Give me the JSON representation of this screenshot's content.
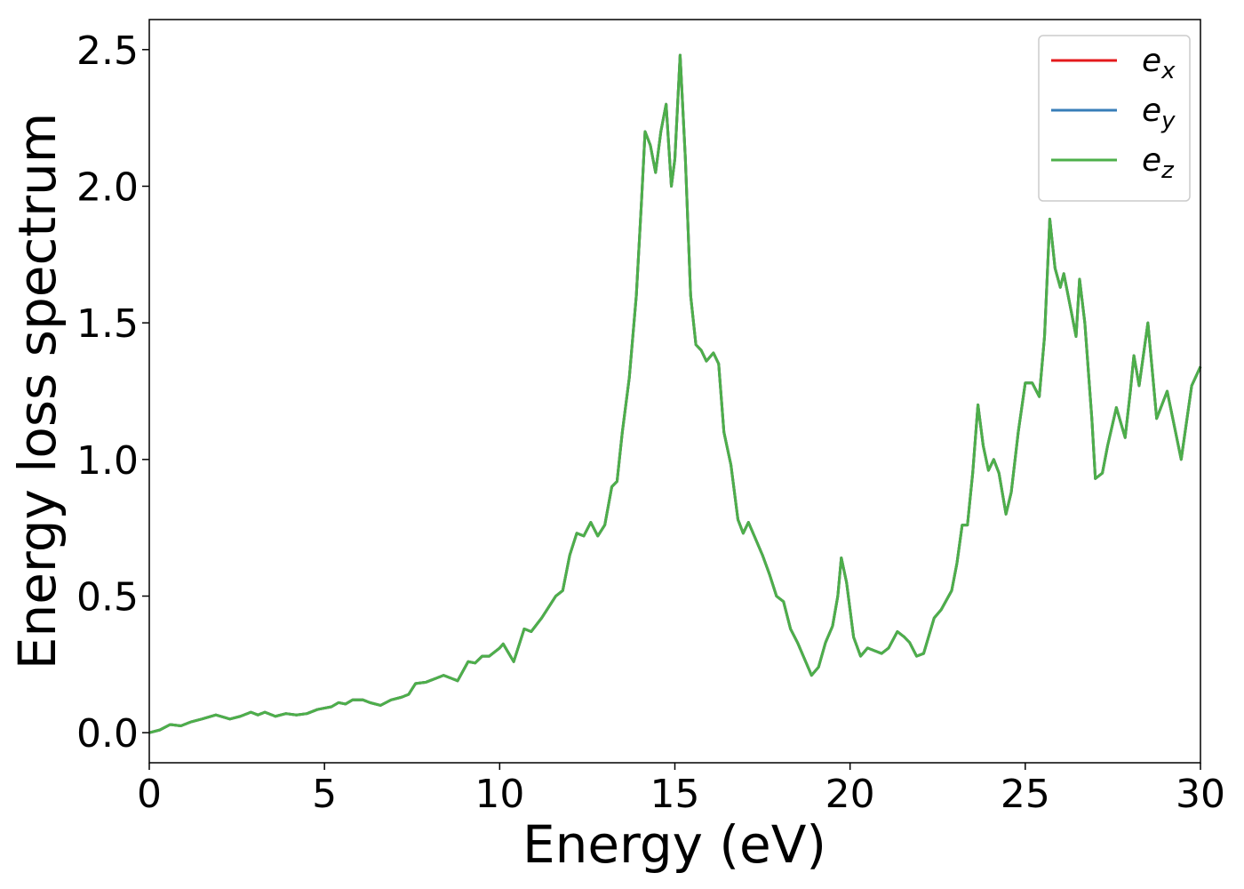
{
  "chart_data": {
    "type": "line",
    "xlabel": "Energy (eV)",
    "ylabel": "Energy loss spectrum",
    "x": [
      0,
      0.3,
      0.6,
      0.9,
      1.2,
      1.5,
      1.9,
      2.3,
      2.6,
      2.9,
      3.1,
      3.3,
      3.6,
      3.9,
      4.2,
      4.5,
      4.8,
      5.2,
      5.4,
      5.6,
      5.8,
      6.1,
      6.3,
      6.6,
      6.9,
      7.2,
      7.4,
      7.6,
      7.9,
      8.2,
      8.4,
      8.8,
      9.1,
      9.3,
      9.5,
      9.7,
      10.0,
      10.1,
      10.4,
      10.7,
      10.9,
      11.2,
      11.4,
      11.6,
      11.8,
      12.0,
      12.2,
      12.4,
      12.6,
      12.8,
      13.0,
      13.2,
      13.35,
      13.5,
      13.7,
      13.9,
      14.05,
      14.15,
      14.3,
      14.45,
      14.6,
      14.75,
      14.9,
      15.0,
      15.15,
      15.3,
      15.45,
      15.6,
      15.75,
      15.9,
      16.1,
      16.25,
      16.4,
      16.6,
      16.8,
      16.95,
      17.1,
      17.3,
      17.5,
      17.7,
      17.9,
      18.1,
      18.3,
      18.5,
      18.7,
      18.9,
      19.1,
      19.3,
      19.5,
      19.65,
      19.75,
      19.9,
      20.1,
      20.3,
      20.5,
      20.7,
      20.9,
      21.1,
      21.35,
      21.55,
      21.7,
      21.9,
      22.1,
      22.4,
      22.6,
      22.9,
      23.05,
      23.2,
      23.35,
      23.5,
      23.65,
      23.8,
      23.95,
      24.1,
      24.25,
      24.45,
      24.6,
      24.8,
      25.0,
      25.2,
      25.4,
      25.55,
      25.7,
      25.85,
      26.0,
      26.1,
      26.3,
      26.45,
      26.55,
      26.7,
      26.9,
      27.0,
      27.2,
      27.35,
      27.6,
      27.85,
      28.0,
      28.1,
      28.25,
      28.5,
      28.75,
      29.05,
      29.45,
      29.75,
      30.0
    ],
    "series": [
      {
        "name": "ex",
        "color": "#e41a1c",
        "values": [
          0.0,
          0.01,
          0.03,
          0.025,
          0.04,
          0.05,
          0.065,
          0.05,
          0.06,
          0.075,
          0.065,
          0.075,
          0.06,
          0.07,
          0.065,
          0.07,
          0.085,
          0.095,
          0.11,
          0.105,
          0.12,
          0.12,
          0.11,
          0.1,
          0.12,
          0.13,
          0.14,
          0.18,
          0.185,
          0.2,
          0.21,
          0.19,
          0.26,
          0.255,
          0.28,
          0.28,
          0.31,
          0.325,
          0.26,
          0.38,
          0.37,
          0.42,
          0.46,
          0.5,
          0.52,
          0.65,
          0.73,
          0.72,
          0.77,
          0.72,
          0.76,
          0.9,
          0.92,
          1.1,
          1.3,
          1.6,
          1.95,
          2.2,
          2.15,
          2.05,
          2.2,
          2.3,
          2.0,
          2.1,
          2.48,
          2.1,
          1.6,
          1.42,
          1.4,
          1.36,
          1.39,
          1.35,
          1.1,
          0.98,
          0.78,
          0.73,
          0.77,
          0.71,
          0.65,
          0.58,
          0.5,
          0.48,
          0.38,
          0.33,
          0.27,
          0.21,
          0.24,
          0.33,
          0.39,
          0.5,
          0.64,
          0.55,
          0.35,
          0.28,
          0.31,
          0.3,
          0.29,
          0.31,
          0.37,
          0.35,
          0.33,
          0.28,
          0.29,
          0.42,
          0.45,
          0.52,
          0.62,
          0.76,
          0.76,
          0.95,
          1.2,
          1.05,
          0.96,
          1.0,
          0.95,
          0.8,
          0.88,
          1.1,
          1.28,
          1.28,
          1.23,
          1.45,
          1.88,
          1.7,
          1.63,
          1.68,
          1.55,
          1.45,
          1.66,
          1.5,
          1.15,
          0.93,
          0.95,
          1.05,
          1.19,
          1.08,
          1.25,
          1.38,
          1.27,
          1.5,
          1.15,
          1.25,
          1.0,
          1.27,
          1.34
        ]
      },
      {
        "name": "ey",
        "color": "#377eb8",
        "values": [
          0.0,
          0.01,
          0.03,
          0.025,
          0.04,
          0.05,
          0.065,
          0.05,
          0.06,
          0.075,
          0.065,
          0.075,
          0.06,
          0.07,
          0.065,
          0.07,
          0.085,
          0.095,
          0.11,
          0.105,
          0.12,
          0.12,
          0.11,
          0.1,
          0.12,
          0.13,
          0.14,
          0.18,
          0.185,
          0.2,
          0.21,
          0.19,
          0.26,
          0.255,
          0.28,
          0.28,
          0.31,
          0.325,
          0.26,
          0.38,
          0.37,
          0.42,
          0.46,
          0.5,
          0.52,
          0.65,
          0.73,
          0.72,
          0.77,
          0.72,
          0.76,
          0.9,
          0.92,
          1.1,
          1.3,
          1.6,
          1.95,
          2.2,
          2.15,
          2.05,
          2.2,
          2.3,
          2.0,
          2.1,
          2.48,
          2.1,
          1.6,
          1.42,
          1.4,
          1.36,
          1.39,
          1.35,
          1.1,
          0.98,
          0.78,
          0.73,
          0.77,
          0.71,
          0.65,
          0.58,
          0.5,
          0.48,
          0.38,
          0.33,
          0.27,
          0.21,
          0.24,
          0.33,
          0.39,
          0.5,
          0.64,
          0.55,
          0.35,
          0.28,
          0.31,
          0.3,
          0.29,
          0.31,
          0.37,
          0.35,
          0.33,
          0.28,
          0.29,
          0.42,
          0.45,
          0.52,
          0.62,
          0.76,
          0.76,
          0.95,
          1.2,
          1.05,
          0.96,
          1.0,
          0.95,
          0.8,
          0.88,
          1.1,
          1.28,
          1.28,
          1.23,
          1.45,
          1.88,
          1.7,
          1.63,
          1.68,
          1.55,
          1.45,
          1.66,
          1.5,
          1.15,
          0.93,
          0.95,
          1.05,
          1.19,
          1.08,
          1.25,
          1.38,
          1.27,
          1.5,
          1.15,
          1.25,
          1.0,
          1.27,
          1.34
        ]
      },
      {
        "name": "ez",
        "color": "#4daf4a",
        "values": [
          0.0,
          0.01,
          0.03,
          0.025,
          0.04,
          0.05,
          0.065,
          0.05,
          0.06,
          0.075,
          0.065,
          0.075,
          0.06,
          0.07,
          0.065,
          0.07,
          0.085,
          0.095,
          0.11,
          0.105,
          0.12,
          0.12,
          0.11,
          0.1,
          0.12,
          0.13,
          0.14,
          0.18,
          0.185,
          0.2,
          0.21,
          0.19,
          0.26,
          0.255,
          0.28,
          0.28,
          0.31,
          0.325,
          0.26,
          0.38,
          0.37,
          0.42,
          0.46,
          0.5,
          0.52,
          0.65,
          0.73,
          0.72,
          0.77,
          0.72,
          0.76,
          0.9,
          0.92,
          1.1,
          1.3,
          1.6,
          1.95,
          2.2,
          2.15,
          2.05,
          2.2,
          2.3,
          2.0,
          2.1,
          2.48,
          2.1,
          1.6,
          1.42,
          1.4,
          1.36,
          1.39,
          1.35,
          1.1,
          0.98,
          0.78,
          0.73,
          0.77,
          0.71,
          0.65,
          0.58,
          0.5,
          0.48,
          0.38,
          0.33,
          0.27,
          0.21,
          0.24,
          0.33,
          0.39,
          0.5,
          0.64,
          0.55,
          0.35,
          0.28,
          0.31,
          0.3,
          0.29,
          0.31,
          0.37,
          0.35,
          0.33,
          0.28,
          0.29,
          0.42,
          0.45,
          0.52,
          0.62,
          0.76,
          0.76,
          0.95,
          1.2,
          1.05,
          0.96,
          1.0,
          0.95,
          0.8,
          0.88,
          1.1,
          1.28,
          1.28,
          1.23,
          1.45,
          1.88,
          1.7,
          1.63,
          1.68,
          1.55,
          1.45,
          1.66,
          1.5,
          1.15,
          0.93,
          0.95,
          1.05,
          1.19,
          1.08,
          1.25,
          1.38,
          1.27,
          1.5,
          1.15,
          1.25,
          1.0,
          1.27,
          1.34
        ]
      }
    ],
    "xlim": [
      0,
      30
    ],
    "xticks": [
      0,
      5,
      10,
      15,
      20,
      25,
      30
    ],
    "ylim": [
      -0.11,
      2.61
    ],
    "yticks": [
      {
        "value": 0,
        "label": "0.0"
      },
      0.5,
      {
        "value": 1,
        "label": "1.0"
      },
      1.5,
      {
        "value": 2,
        "label": "2.0"
      },
      2.5
    ],
    "legend": "upper right",
    "grid": false
  }
}
